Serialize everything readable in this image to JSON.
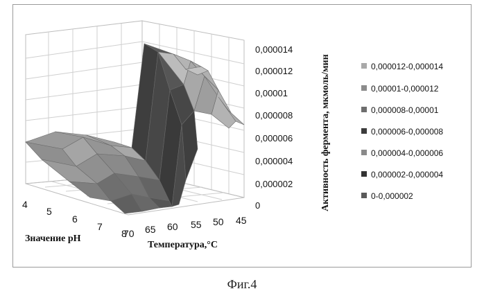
{
  "figure_caption": "Фиг.4",
  "chart_data": {
    "type": "surface",
    "zlabel": "Активность фермента, мкмоль/мин",
    "xlabel": "Значение pH",
    "ylabel": "Температура,°С",
    "ph_ticks": [
      "4",
      "5",
      "6",
      "7",
      "8"
    ],
    "temperature_ticks": [
      "70",
      "65",
      "60",
      "55",
      "50",
      "45"
    ],
    "z_ticks": [
      "0",
      "0,000002",
      "0,000004",
      "0,000006",
      "0,000008",
      "0,00001",
      "0,000012",
      "0,000014"
    ],
    "zlim": [
      0,
      1.4e-05
    ],
    "legend_position": "right",
    "legend": [
      {
        "label": "0,000012-0,000014",
        "color": "#a9a9a9"
      },
      {
        "label": "0,00001-0,000012",
        "color": "#8c8c8c"
      },
      {
        "label": "0,000008-0,00001",
        "color": "#6e6e6e"
      },
      {
        "label": "0,000006-0,000008",
        "color": "#3c3c3c"
      },
      {
        "label": "0,000004-0,000006",
        "color": "#8a8a8a"
      },
      {
        "label": "0,000002-0,000004",
        "color": "#333333"
      },
      {
        "label": "0-0,000002",
        "color": "#5a5a5a"
      }
    ]
  }
}
